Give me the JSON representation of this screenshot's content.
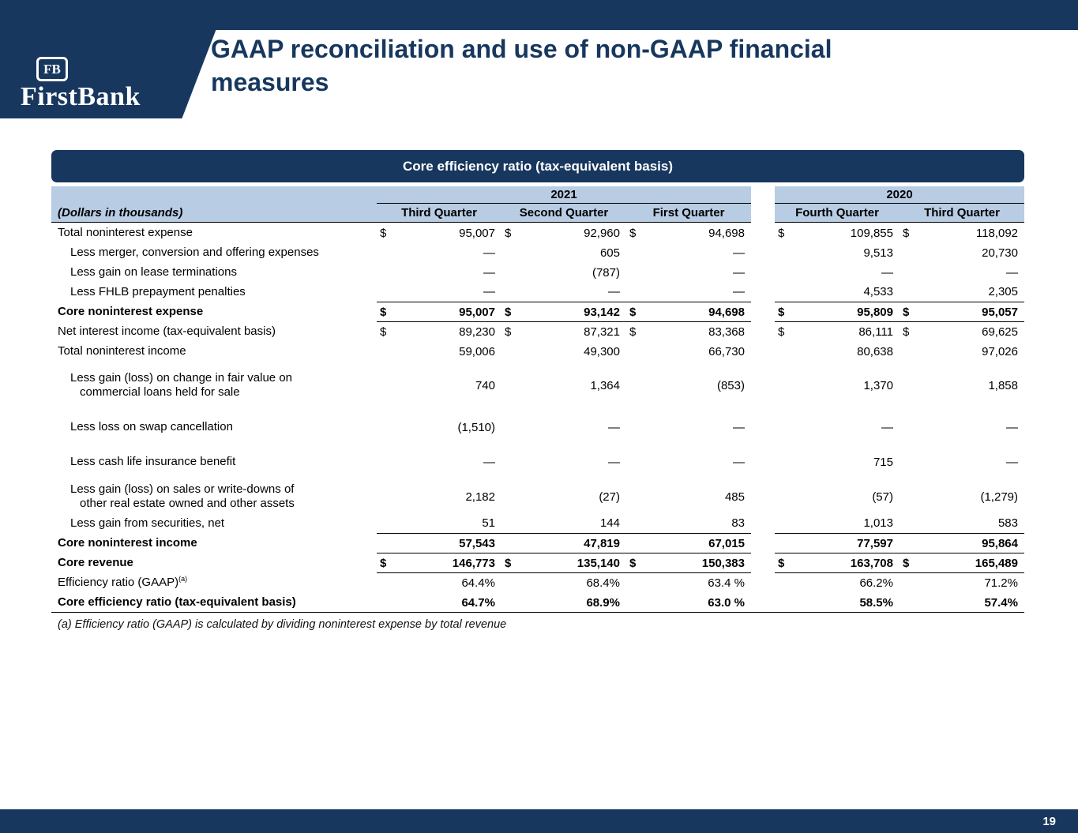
{
  "slide": {
    "logo": {
      "fb": "FB",
      "name": "FirstBank"
    },
    "title": "GAAP reconciliation and use of non-GAAP financial measures",
    "page_number": "19"
  },
  "colors": {
    "navy": "#17375e",
    "header_blue": "#b8cce4"
  },
  "table": {
    "banner": "Core efficiency ratio (tax-equivalent basis)",
    "label_header": "(Dollars in thousands)",
    "year_groups": [
      {
        "year": "2021",
        "quarters": [
          "Third Quarter",
          "Second Quarter",
          "First Quarter"
        ]
      },
      {
        "year": "2020",
        "quarters": [
          "Fourth Quarter",
          "Third Quarter"
        ]
      }
    ],
    "rows": [
      {
        "label": "Total noninterest expense",
        "dollar": true,
        "values": [
          "95,007",
          "92,960",
          "94,698",
          "109,855",
          "118,092"
        ]
      },
      {
        "label": "Less merger, conversion and offering expenses",
        "indent": true,
        "values": [
          "—",
          "605",
          "—",
          "9,513",
          "20,730"
        ]
      },
      {
        "label": "Less gain on lease terminations",
        "indent": true,
        "values": [
          "—",
          "(787)",
          "—",
          "—",
          "—"
        ]
      },
      {
        "label": "Less FHLB prepayment penalties",
        "indent": true,
        "line_below": true,
        "values": [
          "—",
          "—",
          "—",
          "4,533",
          "2,305"
        ]
      },
      {
        "label": "Core noninterest expense",
        "bold": true,
        "dollar": true,
        "line_below": true,
        "values": [
          "95,007",
          "93,142",
          "94,698",
          "95,809",
          "95,057"
        ]
      },
      {
        "label": "Net interest income (tax-equivalent basis)",
        "dollar": true,
        "values": [
          "89,230",
          "87,321",
          "83,368",
          "86,111",
          "69,625"
        ]
      },
      {
        "label": "Total noninterest income",
        "values": [
          "59,006",
          "49,300",
          "66,730",
          "80,638",
          "97,026"
        ]
      },
      {
        "label": "Less gain (loss) on change in fair value on",
        "label2": "commercial loans held for sale",
        "indent": true,
        "tall": true,
        "values": [
          "740",
          "1,364",
          "(853)",
          "1,370",
          "1,858"
        ]
      },
      {
        "label": "Less loss on swap cancellation",
        "indent": true,
        "tall": true,
        "values": [
          "(1,510)",
          "—",
          "—",
          "—",
          "—"
        ]
      },
      {
        "label": "Less cash life insurance benefit",
        "indent": true,
        "tall": true,
        "values": [
          "—",
          "—",
          "—",
          "715",
          "—"
        ]
      },
      {
        "label": "Less gain (loss) on sales or write-downs of",
        "label2": "other real estate owned and other assets",
        "indent": true,
        "values": [
          "2,182",
          "(27)",
          "485",
          "(57)",
          "(1,279)"
        ]
      },
      {
        "label": "Less gain  from securities, net",
        "indent": true,
        "line_below": true,
        "values": [
          "51",
          "144",
          "83",
          "1,013",
          "583"
        ]
      },
      {
        "label": "Core noninterest income",
        "bold": true,
        "line_below": true,
        "values": [
          "57,543",
          "47,819",
          "67,015",
          "77,597",
          "95,864"
        ]
      },
      {
        "label": "Core revenue",
        "bold": true,
        "dollar": true,
        "line_below": true,
        "values": [
          "146,773",
          "135,140",
          "150,383",
          "163,708",
          "165,489"
        ]
      },
      {
        "label": "Efficiency ratio (GAAP)",
        "label_sup": "(a)",
        "values": [
          "64.4%",
          "68.4%",
          "63.4 %",
          "66.2%",
          "71.2%"
        ]
      },
      {
        "label": "Core efficiency ratio (tax-equivalent basis)",
        "bold": true,
        "bottom_line": true,
        "values": [
          "64.7%",
          "68.9%",
          "63.0 %",
          "58.5%",
          "57.4%"
        ]
      }
    ],
    "footnote": "(a) Efficiency ratio (GAAP) is calculated by dividing noninterest expense by total revenue"
  }
}
